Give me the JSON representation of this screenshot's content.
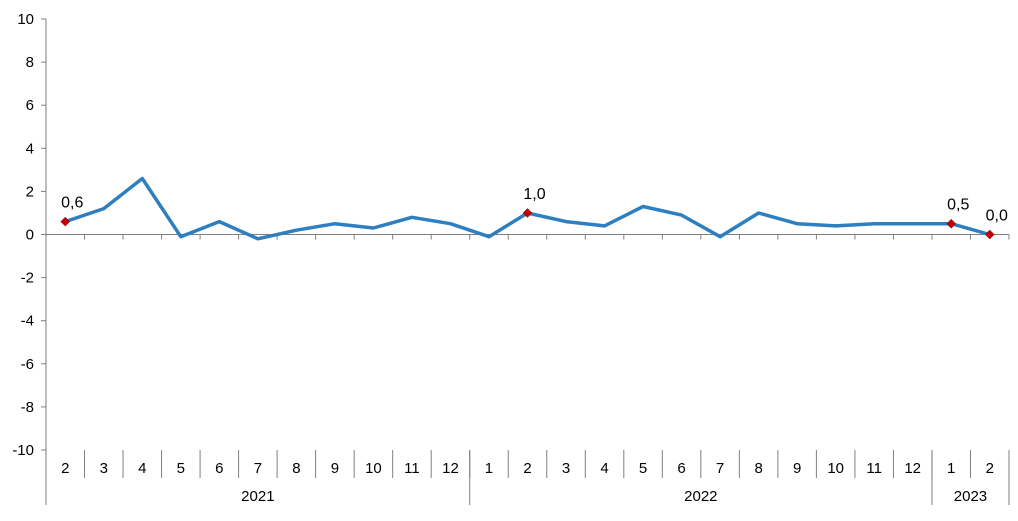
{
  "chart_data": {
    "type": "line",
    "ylim": [
      -10,
      10
    ],
    "yticks": [
      "10",
      "8",
      "6",
      "4",
      "2",
      "0",
      "-2",
      "-4",
      "-6",
      "-8",
      "-10"
    ],
    "grid": false,
    "legend": "none",
    "categories": [
      "2",
      "3",
      "4",
      "5",
      "6",
      "7",
      "8",
      "9",
      "10",
      "11",
      "12",
      "1",
      "2",
      "3",
      "4",
      "5",
      "6",
      "7",
      "8",
      "9",
      "10",
      "11",
      "12",
      "1",
      "2"
    ],
    "years": [
      {
        "label": "2021",
        "count": 11
      },
      {
        "label": "2022",
        "count": 12
      },
      {
        "label": "2023",
        "count": 2
      }
    ],
    "series": [
      {
        "color": "#2e7fc0",
        "values": [
          0.6,
          1.2,
          2.6,
          -0.1,
          0.6,
          -0.2,
          0.2,
          0.5,
          0.3,
          0.8,
          0.5,
          -0.1,
          1.0,
          0.6,
          0.4,
          1.3,
          0.9,
          -0.1,
          1.0,
          0.5,
          0.4,
          0.5,
          0.5,
          0.5,
          0.0
        ]
      }
    ],
    "markers": [
      {
        "index": 0,
        "label": "0,6"
      },
      {
        "index": 12,
        "label": "1,0"
      },
      {
        "index": 23,
        "label": "0,5"
      },
      {
        "index": 24,
        "label": "0,0"
      }
    ],
    "marker_color": "#c00000"
  }
}
